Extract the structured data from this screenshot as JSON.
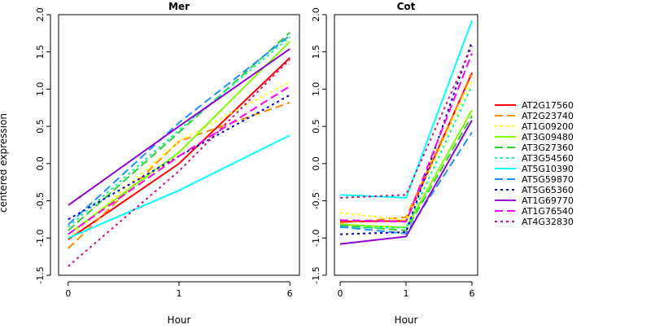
{
  "chart_data": {
    "type": "line",
    "ylabel": "centered expression",
    "xlabel": "Hour",
    "x": [
      "0",
      "1",
      "6"
    ],
    "ylim": [
      -1.5,
      2.0
    ],
    "yticks": [
      "-1.5",
      "-1.0",
      "-0.5",
      "0.0",
      "0.5",
      "1.0",
      "1.5",
      "2.0"
    ],
    "panels": [
      {
        "title": "Mer",
        "series": [
          {
            "name": "AT2G17560",
            "color": "#ff0000",
            "dash": "solid",
            "values": [
              -1.02,
              0.0,
              1.42
            ]
          },
          {
            "name": "AT2G23740",
            "color": "#ff8c00",
            "dash": "dashed",
            "values": [
              -1.14,
              0.3,
              0.82
            ]
          },
          {
            "name": "AT1G09200",
            "color": "#ffff00",
            "dash": "dotted",
            "values": [
              -1.0,
              0.3,
              1.1
            ]
          },
          {
            "name": "AT3G09480",
            "color": "#7fff00",
            "dash": "solid",
            "values": [
              -0.95,
              0.15,
              1.64
            ]
          },
          {
            "name": "AT3G27360",
            "color": "#32cd32",
            "dash": "dashed",
            "values": [
              -0.9,
              0.42,
              1.76
            ]
          },
          {
            "name": "AT3G54560",
            "color": "#00fa9a",
            "dash": "dotted",
            "values": [
              -0.85,
              0.45,
              1.7
            ]
          },
          {
            "name": "AT5G10390",
            "color": "#00ffff",
            "dash": "solid",
            "values": [
              -1.0,
              -0.36,
              0.38
            ]
          },
          {
            "name": "AT5G59870",
            "color": "#1e90ff",
            "dash": "dashed",
            "values": [
              -0.82,
              0.55,
              1.72
            ]
          },
          {
            "name": "AT5G65360",
            "color": "#0000cd",
            "dash": "dotted",
            "values": [
              -0.75,
              0.1,
              0.92
            ]
          },
          {
            "name": "AT1G69770",
            "color": "#9400d3",
            "dash": "solid",
            "values": [
              -0.56,
              0.5,
              1.54
            ]
          },
          {
            "name": "AT1G76540",
            "color": "#ff00ff",
            "dash": "dashed",
            "values": [
              -0.95,
              0.1,
              1.04
            ]
          },
          {
            "name": "AT4G32830",
            "color": "#c71585",
            "dash": "dotted",
            "values": [
              -1.38,
              -0.1,
              1.4
            ]
          }
        ]
      },
      {
        "title": "Cot",
        "series": [
          {
            "name": "AT2G17560",
            "color": "#ff0000",
            "dash": "solid",
            "values": [
              -0.78,
              -0.77,
              1.22
            ]
          },
          {
            "name": "AT2G23740",
            "color": "#ff8c00",
            "dash": "dashed",
            "values": [
              -0.8,
              -0.72,
              1.2
            ]
          },
          {
            "name": "AT1G09200",
            "color": "#ffff00",
            "dash": "dotted",
            "values": [
              -0.66,
              -0.76,
              1.12
            ]
          },
          {
            "name": "AT3G09480",
            "color": "#7fff00",
            "dash": "solid",
            "values": [
              -0.82,
              -0.86,
              0.72
            ]
          },
          {
            "name": "AT3G27360",
            "color": "#32cd32",
            "dash": "dashed",
            "values": [
              -0.83,
              -0.9,
              0.64
            ]
          },
          {
            "name": "AT3G54560",
            "color": "#00fa9a",
            "dash": "dotted",
            "values": [
              -0.86,
              -0.86,
              1.05
            ]
          },
          {
            "name": "AT5G10390",
            "color": "#00ffff",
            "dash": "solid",
            "values": [
              -0.42,
              -0.46,
              1.92
            ]
          },
          {
            "name": "AT5G59870",
            "color": "#1e90ff",
            "dash": "dashed",
            "values": [
              -0.85,
              -0.94,
              0.42
            ]
          },
          {
            "name": "AT5G65360",
            "color": "#0000cd",
            "dash": "dotted",
            "values": [
              -0.95,
              -0.92,
              1.64
            ]
          },
          {
            "name": "AT1G69770",
            "color": "#9400d3",
            "dash": "solid",
            "values": [
              -1.08,
              -0.98,
              0.58
            ]
          },
          {
            "name": "AT1G76540",
            "color": "#ff00ff",
            "dash": "dashed",
            "values": [
              -0.76,
              -0.78,
              1.48
            ]
          },
          {
            "name": "AT4G32830",
            "color": "#c71585",
            "dash": "dotted",
            "values": [
              -0.46,
              -0.42,
              1.58
            ]
          }
        ]
      }
    ],
    "legend": {
      "placement": "right",
      "entries": [
        {
          "name": "AT2G17560",
          "color": "#ff0000",
          "dash": "solid"
        },
        {
          "name": "AT2G23740",
          "color": "#ff8c00",
          "dash": "dashed"
        },
        {
          "name": "AT1G09200",
          "color": "#ffff00",
          "dash": "dotted"
        },
        {
          "name": "AT3G09480",
          "color": "#7fff00",
          "dash": "solid"
        },
        {
          "name": "AT3G27360",
          "color": "#32cd32",
          "dash": "dashed"
        },
        {
          "name": "AT3G54560",
          "color": "#00fa9a",
          "dash": "dotted"
        },
        {
          "name": "AT5G10390",
          "color": "#00ffff",
          "dash": "solid"
        },
        {
          "name": "AT5G59870",
          "color": "#1e90ff",
          "dash": "dashed"
        },
        {
          "name": "AT5G65360",
          "color": "#0000cd",
          "dash": "dotted"
        },
        {
          "name": "AT1G69770",
          "color": "#9400d3",
          "dash": "solid"
        },
        {
          "name": "AT1G76540",
          "color": "#ff00ff",
          "dash": "dashed"
        },
        {
          "name": "AT4G32830",
          "color": "#c71585",
          "dash": "dotted"
        }
      ]
    }
  }
}
